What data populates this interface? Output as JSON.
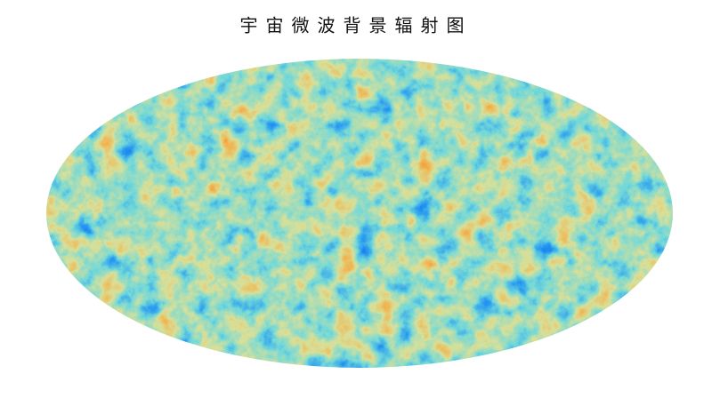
{
  "title": "宇宙微波背景辐射图"
}
